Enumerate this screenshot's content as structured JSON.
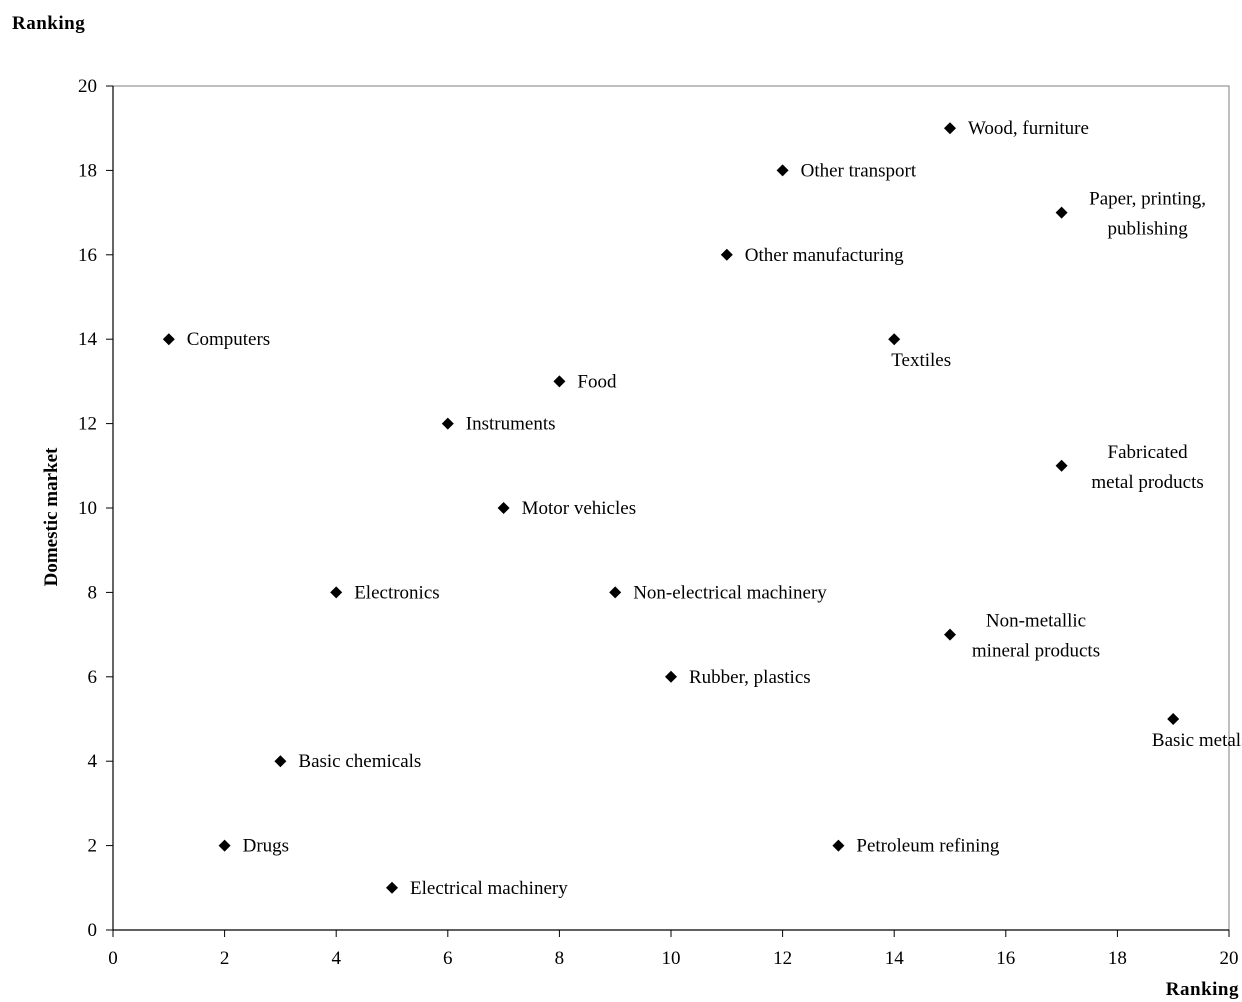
{
  "chart_data": {
    "type": "scatter",
    "top_label": "Ranking",
    "xlabel": "Ranking",
    "ylabel": "Domestic market",
    "xlim": [
      0,
      20
    ],
    "ylim": [
      0,
      20
    ],
    "xticks": [
      0,
      2,
      4,
      6,
      8,
      10,
      12,
      14,
      16,
      18,
      20
    ],
    "yticks": [
      0,
      2,
      4,
      6,
      8,
      10,
      12,
      14,
      16,
      18,
      20
    ],
    "grid": false,
    "marker": "diamond",
    "marker_color": "#000000",
    "points": [
      {
        "label": [
          "Wood, furniture"
        ],
        "x": 15,
        "y": 19,
        "label_pos": "right"
      },
      {
        "label": [
          "Other transport"
        ],
        "x": 12,
        "y": 18,
        "label_pos": "right"
      },
      {
        "label": [
          "Paper, printing,",
          "publishing"
        ],
        "x": 17,
        "y": 17,
        "label_pos": "right-stacked"
      },
      {
        "label": [
          "Other manufacturing"
        ],
        "x": 11,
        "y": 16,
        "label_pos": "right"
      },
      {
        "label": [
          "Computers"
        ],
        "x": 1,
        "y": 14,
        "label_pos": "right"
      },
      {
        "label": [
          "Textiles"
        ],
        "x": 14,
        "y": 14,
        "label_pos": "below"
      },
      {
        "label": [
          "Food"
        ],
        "x": 8,
        "y": 13,
        "label_pos": "right"
      },
      {
        "label": [
          "Instruments"
        ],
        "x": 6,
        "y": 12,
        "label_pos": "right"
      },
      {
        "label": [
          "Fabricated",
          "metal products"
        ],
        "x": 17,
        "y": 11,
        "label_pos": "right-stacked"
      },
      {
        "label": [
          "Motor vehicles"
        ],
        "x": 7,
        "y": 10,
        "label_pos": "right"
      },
      {
        "label": [
          "Electronics"
        ],
        "x": 4,
        "y": 8,
        "label_pos": "right"
      },
      {
        "label": [
          "Non-electrical machinery"
        ],
        "x": 9,
        "y": 8,
        "label_pos": "right"
      },
      {
        "label": [
          "Non-metallic",
          "mineral products"
        ],
        "x": 15,
        "y": 7,
        "label_pos": "right-stacked"
      },
      {
        "label": [
          "Rubber, plastics"
        ],
        "x": 10,
        "y": 6,
        "label_pos": "right"
      },
      {
        "label": [
          "Basic metals"
        ],
        "x": 19,
        "y": 5,
        "label_pos": "below"
      },
      {
        "label": [
          "Basic chemicals"
        ],
        "x": 3,
        "y": 4,
        "label_pos": "right"
      },
      {
        "label": [
          "Drugs"
        ],
        "x": 2,
        "y": 2,
        "label_pos": "right"
      },
      {
        "label": [
          "Petroleum refining"
        ],
        "x": 13,
        "y": 2,
        "label_pos": "right"
      },
      {
        "label": [
          "Electrical machinery"
        ],
        "x": 5,
        "y": 1,
        "label_pos": "right"
      }
    ]
  }
}
